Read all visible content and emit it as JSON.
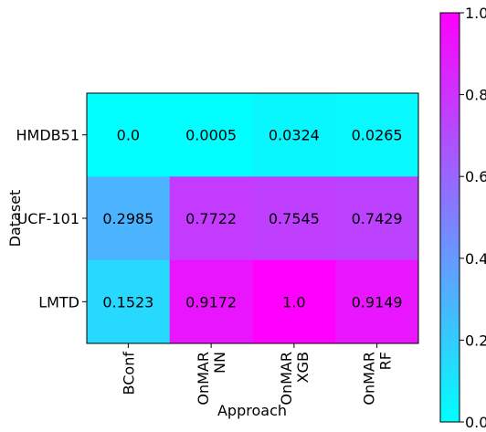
{
  "chart_data": {
    "type": "heatmap",
    "title": "",
    "xlabel": "Approach",
    "ylabel": "Dataset",
    "x_categories": [
      [
        "BConf"
      ],
      [
        "OnMAR",
        "NN"
      ],
      [
        "OnMAR",
        "XGB"
      ],
      [
        "OnMAR",
        "RF"
      ]
    ],
    "y_categories": [
      "HMDB51",
      "UCF-101",
      "LMTD"
    ],
    "values": [
      [
        0.0,
        0.0005,
        0.0324,
        0.0265
      ],
      [
        0.2985,
        0.7722,
        0.7545,
        0.7429
      ],
      [
        0.1523,
        0.9172,
        1.0,
        0.9149
      ]
    ],
    "cell_labels": [
      [
        "0.0",
        "0.0005",
        "0.0324",
        "0.0265"
      ],
      [
        "0.2985",
        "0.7722",
        "0.7545",
        "0.7429"
      ],
      [
        "0.1523",
        "0.9172",
        "1.0",
        "0.9149"
      ]
    ],
    "colormap": "cool",
    "colormap_start": "#00ffff",
    "colormap_end": "#ff00ff",
    "colorbar": {
      "range": [
        0.0,
        1.0
      ],
      "ticks": [
        0.0,
        0.2,
        0.4,
        0.6,
        0.8,
        1.0
      ],
      "tick_labels": [
        "0.0",
        "0.2",
        "0.4",
        "0.6",
        "0.8",
        "1.0"
      ]
    }
  }
}
